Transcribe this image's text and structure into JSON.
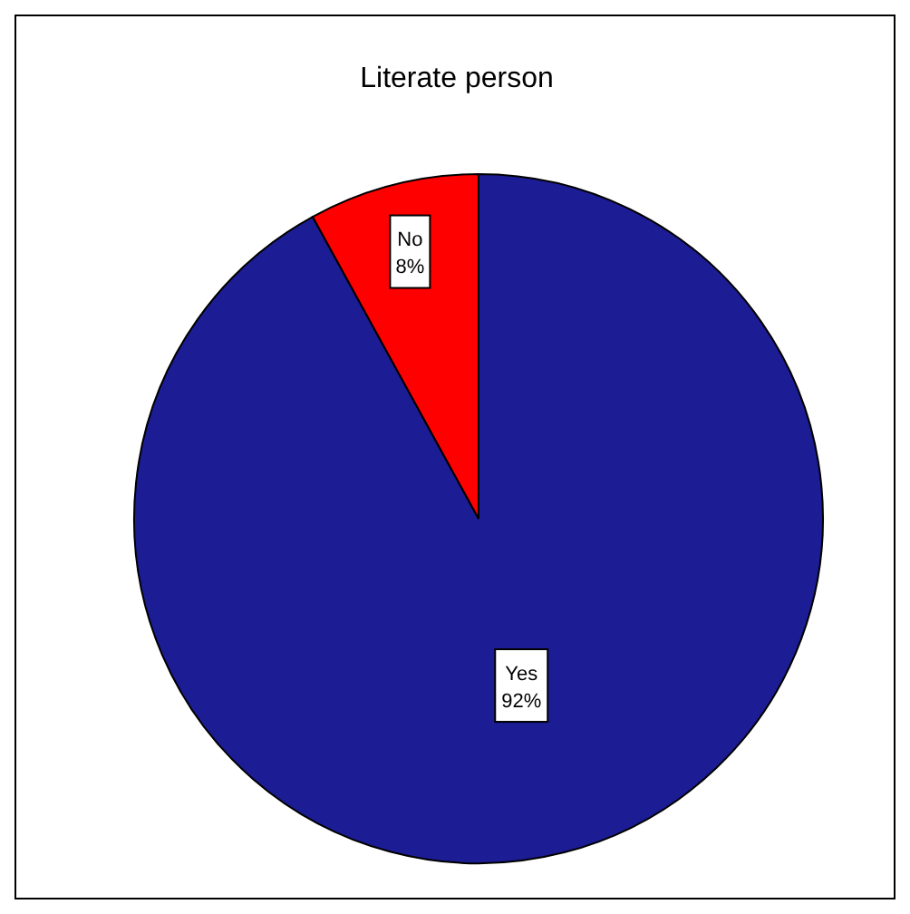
{
  "chart_data": {
    "type": "pie",
    "title": "Literate person",
    "categories": [
      "Yes",
      "No"
    ],
    "values": [
      92,
      8
    ],
    "colors": [
      "#1c1c94",
      "#ff0000"
    ],
    "value_labels": [
      "92%",
      "8%"
    ]
  }
}
